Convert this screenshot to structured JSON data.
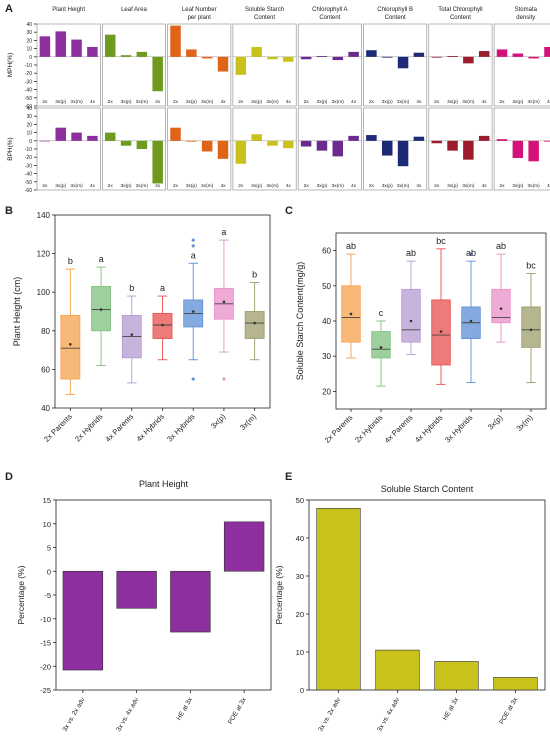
{
  "chart_data": [
    {
      "panel": "A",
      "type": "bar",
      "categories": [
        "2x",
        "3x(p)",
        "3x(m)",
        "4x"
      ],
      "ylabel_top": "MPH(%)",
      "ylabel_bottom": "BPH(%)",
      "ylim": [
        -60,
        40
      ],
      "yticks": [
        40,
        30,
        20,
        10,
        0,
        -10,
        -20,
        -30,
        -40,
        -50,
        -60
      ],
      "traits": [
        {
          "name": "Plant Height",
          "color": "#8e2fa0",
          "mph": [
            25,
            31,
            21,
            12
          ],
          "bph": [
            0,
            16,
            10,
            6
          ]
        },
        {
          "name": "Leaf Area",
          "color": "#6e9b1f",
          "mph": [
            27,
            2,
            6,
            -42
          ],
          "bph": [
            10,
            -6,
            -10,
            -52
          ]
        },
        {
          "name": "Leaf Number per plant",
          "color": "#e06418",
          "mph": [
            38,
            9,
            -2,
            -18
          ],
          "bph": [
            16,
            -1,
            -13,
            -22
          ]
        },
        {
          "name": "Soluble Starch Content",
          "color": "#c9c21c",
          "mph": [
            -22,
            12,
            -3,
            -6
          ],
          "bph": [
            -28,
            8,
            -6,
            -9
          ]
        },
        {
          "name": "Chlorophyll A Content",
          "color": "#6a2a8e",
          "mph": [
            -3,
            1,
            -4,
            6
          ],
          "bph": [
            -7,
            -12,
            -19,
            6
          ]
        },
        {
          "name": "Chlorophyll B Content",
          "color": "#1c2a78",
          "mph": [
            8,
            -1,
            -14,
            5
          ],
          "bph": [
            7,
            -18,
            -31,
            5
          ]
        },
        {
          "name": "Total Chlorophyll Content",
          "color": "#9c1b2c",
          "mph": [
            -1,
            1,
            -8,
            7
          ],
          "bph": [
            -3,
            -12,
            -23,
            6
          ]
        },
        {
          "name": "Stomata density",
          "color": "#d4137a",
          "mph": [
            9,
            4,
            -2,
            12
          ],
          "bph": [
            2,
            -21,
            -25,
            -1
          ]
        }
      ]
    },
    {
      "panel": "B",
      "type": "box",
      "ylabel": "Plant Height (cm)",
      "ylim": [
        40,
        140
      ],
      "yticks": [
        40,
        60,
        80,
        100,
        120,
        140
      ],
      "groups": [
        {
          "name": "2x Parents",
          "color": "#f5a04b",
          "min": 47,
          "q1": 55,
          "median": 71,
          "q3": 88,
          "max": 112,
          "mean": 73,
          "letter": "b",
          "outliers": []
        },
        {
          "name": "2x Hybrids",
          "color": "#7cc07c",
          "min": 62,
          "q1": 80,
          "median": 91,
          "q3": 103,
          "max": 113,
          "mean": 91,
          "letter": "a",
          "outliers": []
        },
        {
          "name": "4x Parents",
          "color": "#b59ad0",
          "min": 53,
          "q1": 66,
          "median": 77,
          "q3": 88,
          "max": 98,
          "mean": 78,
          "letter": "b",
          "outliers": []
        },
        {
          "name": "4x Hybrids",
          "color": "#e84e4e",
          "min": 65,
          "q1": 76,
          "median": 83,
          "q3": 89,
          "max": 98,
          "mean": 83,
          "letter": "a",
          "outliers": []
        },
        {
          "name": "3x Hybrids",
          "color": "#5b8fd6",
          "min": 65,
          "q1": 82,
          "median": 89,
          "q3": 96,
          "max": 115,
          "mean": 90,
          "letter": "a",
          "outliers": [
            124,
            127,
            55
          ]
        },
        {
          "name": "3x(p)",
          "color": "#e88fc8",
          "min": 69,
          "q1": 86,
          "median": 94,
          "q3": 102,
          "max": 127,
          "mean": 95,
          "letter": "a",
          "outliers": [
            55
          ]
        },
        {
          "name": "3x(m)",
          "color": "#9c9c6a",
          "min": 65,
          "q1": 76,
          "median": 84,
          "q3": 90,
          "max": 105,
          "mean": 84,
          "letter": "b",
          "outliers": []
        }
      ]
    },
    {
      "panel": "C",
      "type": "box",
      "ylabel": "Soluble Starch Content(mg/g)",
      "ylim": [
        15,
        65
      ],
      "yticks": [
        20,
        30,
        40,
        50,
        60
      ],
      "groups": [
        {
          "name": "2x Parents",
          "color": "#f5a04b",
          "min": 29.5,
          "q1": 34,
          "median": 41,
          "q3": 50,
          "max": 59,
          "mean": 42,
          "letter": "ab",
          "outliers": []
        },
        {
          "name": "2x Hybrids",
          "color": "#7cc07c",
          "min": 21.5,
          "q1": 29.5,
          "median": 32,
          "q3": 37,
          "max": 40,
          "mean": 32.5,
          "letter": "c",
          "outliers": []
        },
        {
          "name": "4x Parents",
          "color": "#b59ad0",
          "min": 30.5,
          "q1": 34,
          "median": 37.5,
          "q3": 49,
          "max": 57,
          "mean": 40,
          "letter": "ab",
          "outliers": []
        },
        {
          "name": "4x Hybrids",
          "color": "#e84e4e",
          "min": 22,
          "q1": 27.5,
          "median": 36,
          "q3": 46,
          "max": 60.5,
          "mean": 37,
          "letter": "bc",
          "outliers": []
        },
        {
          "name": "3x Hybrids",
          "color": "#5b8fd6",
          "min": 22.5,
          "q1": 35,
          "median": 39.5,
          "q3": 44,
          "max": 57,
          "mean": 40,
          "letter": "ab",
          "outliers": [
            59
          ]
        },
        {
          "name": "3x(p)",
          "color": "#e88fc8",
          "min": 34,
          "q1": 39.5,
          "median": 41,
          "q3": 49,
          "max": 59,
          "mean": 43.5,
          "letter": "ab",
          "outliers": []
        },
        {
          "name": "3x(m)",
          "color": "#9c9c6a",
          "min": 22.5,
          "q1": 32.5,
          "median": 37.5,
          "q3": 44,
          "max": 53.5,
          "mean": 37.5,
          "letter": "bc",
          "outliers": []
        }
      ]
    },
    {
      "panel": "D",
      "type": "bar",
      "title": "Plant Height",
      "ylabel": "Percentage (%)",
      "color": "#8e2fa0",
      "ylim": [
        -25,
        15
      ],
      "yticks": [
        15,
        10,
        5,
        0,
        -5,
        -10,
        -15,
        -20,
        -25
      ],
      "categories": [
        "3x vs. 2x adv",
        "3x vs. 4x adv",
        "HE at 3x",
        "POE at 3x"
      ],
      "values": [
        -20.8,
        -7.8,
        -12.8,
        10.4
      ]
    },
    {
      "panel": "E",
      "type": "bar",
      "title": "Soluble Starch Content",
      "ylabel": "Percentage (%)",
      "color": "#c9c21c",
      "ylim": [
        0,
        50
      ],
      "yticks": [
        0,
        10,
        20,
        30,
        40,
        50
      ],
      "categories": [
        "3x vs. 2x adv",
        "3x vs. 4x adv",
        "HE at 3x",
        "POE at 3x"
      ],
      "values": [
        47.8,
        10.5,
        7.5,
        3.3
      ]
    }
  ]
}
